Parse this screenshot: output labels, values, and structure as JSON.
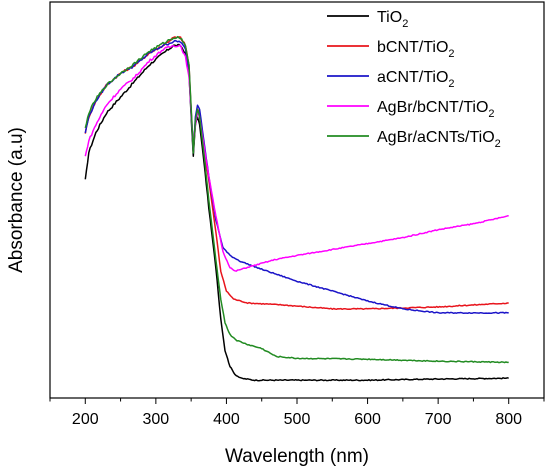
{
  "chart_data": {
    "type": "line",
    "title": "",
    "xlabel": "Wavelength (nm)",
    "ylabel": "Absorbance (a.u)",
    "xlim": [
      150,
      850
    ],
    "ylim": [
      0,
      1
    ],
    "x_ticks": [
      200,
      300,
      400,
      500,
      600,
      700,
      800
    ],
    "y_ticks_shown": false,
    "grid": false,
    "legend_position": "top-right",
    "series": [
      {
        "name": "TiO2",
        "legend_text": "TiO",
        "legend_sub": "2",
        "color": "#000000",
        "points": [
          [
            200,
            0.55
          ],
          [
            205,
            0.62
          ],
          [
            215,
            0.67
          ],
          [
            230,
            0.72
          ],
          [
            250,
            0.76
          ],
          [
            270,
            0.8
          ],
          [
            290,
            0.84
          ],
          [
            310,
            0.87
          ],
          [
            325,
            0.89
          ],
          [
            335,
            0.89
          ],
          [
            342,
            0.87
          ],
          [
            347,
            0.82
          ],
          [
            351,
            0.68
          ],
          [
            353,
            0.61
          ],
          [
            356,
            0.69
          ],
          [
            359,
            0.71
          ],
          [
            362,
            0.69
          ],
          [
            368,
            0.6
          ],
          [
            375,
            0.48
          ],
          [
            385,
            0.33
          ],
          [
            392,
            0.2
          ],
          [
            398,
            0.12
          ],
          [
            405,
            0.08
          ],
          [
            412,
            0.06
          ],
          [
            420,
            0.05
          ],
          [
            440,
            0.045
          ],
          [
            500,
            0.045
          ],
          [
            600,
            0.045
          ],
          [
            700,
            0.048
          ],
          [
            800,
            0.05
          ]
        ]
      },
      {
        "name": "bCNT/TiO2",
        "legend_text": "bCNT/TiO",
        "legend_sub": "2",
        "color": "#e8141c",
        "points": [
          [
            200,
            0.67
          ],
          [
            205,
            0.71
          ],
          [
            215,
            0.75
          ],
          [
            230,
            0.79
          ],
          [
            250,
            0.82
          ],
          [
            270,
            0.84
          ],
          [
            290,
            0.87
          ],
          [
            310,
            0.89
          ],
          [
            325,
            0.91
          ],
          [
            335,
            0.91
          ],
          [
            342,
            0.89
          ],
          [
            347,
            0.84
          ],
          [
            351,
            0.69
          ],
          [
            353,
            0.62
          ],
          [
            356,
            0.7
          ],
          [
            359,
            0.73
          ],
          [
            362,
            0.72
          ],
          [
            368,
            0.63
          ],
          [
            375,
            0.55
          ],
          [
            385,
            0.42
          ],
          [
            392,
            0.32
          ],
          [
            400,
            0.27
          ],
          [
            410,
            0.25
          ],
          [
            430,
            0.24
          ],
          [
            480,
            0.235
          ],
          [
            550,
            0.225
          ],
          [
            600,
            0.225
          ],
          [
            700,
            0.23
          ],
          [
            800,
            0.24
          ]
        ]
      },
      {
        "name": "aCNT/TiO2",
        "legend_text": "aCNT/TiO",
        "legend_sub": "2",
        "color": "#1b14c8",
        "points": [
          [
            200,
            0.67
          ],
          [
            205,
            0.71
          ],
          [
            215,
            0.75
          ],
          [
            230,
            0.79
          ],
          [
            250,
            0.82
          ],
          [
            270,
            0.84
          ],
          [
            290,
            0.87
          ],
          [
            310,
            0.89
          ],
          [
            325,
            0.9
          ],
          [
            335,
            0.9
          ],
          [
            342,
            0.88
          ],
          [
            347,
            0.83
          ],
          [
            351,
            0.69
          ],
          [
            353,
            0.62
          ],
          [
            356,
            0.71
          ],
          [
            359,
            0.74
          ],
          [
            362,
            0.73
          ],
          [
            368,
            0.65
          ],
          [
            375,
            0.56
          ],
          [
            385,
            0.45
          ],
          [
            395,
            0.38
          ],
          [
            405,
            0.36
          ],
          [
            420,
            0.345
          ],
          [
            450,
            0.325
          ],
          [
            500,
            0.295
          ],
          [
            550,
            0.27
          ],
          [
            600,
            0.245
          ],
          [
            650,
            0.225
          ],
          [
            700,
            0.215
          ],
          [
            750,
            0.215
          ],
          [
            800,
            0.215
          ]
        ]
      },
      {
        "name": "AgBr/bCNT/TiO2",
        "legend_text": "AgBr/bCNT/TiO",
        "legend_sub": "2",
        "color": "#ff00ff",
        "points": [
          [
            200,
            0.61
          ],
          [
            205,
            0.65
          ],
          [
            215,
            0.69
          ],
          [
            230,
            0.74
          ],
          [
            250,
            0.78
          ],
          [
            270,
            0.81
          ],
          [
            290,
            0.85
          ],
          [
            310,
            0.88
          ],
          [
            325,
            0.89
          ],
          [
            335,
            0.89
          ],
          [
            342,
            0.86
          ],
          [
            347,
            0.81
          ],
          [
            351,
            0.7
          ],
          [
            353,
            0.63
          ],
          [
            356,
            0.69
          ],
          [
            359,
            0.72
          ],
          [
            362,
            0.71
          ],
          [
            368,
            0.64
          ],
          [
            375,
            0.56
          ],
          [
            385,
            0.46
          ],
          [
            395,
            0.37
          ],
          [
            405,
            0.33
          ],
          [
            412,
            0.32
          ],
          [
            430,
            0.33
          ],
          [
            470,
            0.35
          ],
          [
            500,
            0.36
          ],
          [
            550,
            0.375
          ],
          [
            600,
            0.39
          ],
          [
            650,
            0.405
          ],
          [
            700,
            0.425
          ],
          [
            750,
            0.44
          ],
          [
            800,
            0.46
          ]
        ]
      },
      {
        "name": "AgBr/aCNTs/TiO2",
        "legend_text": "AgBr/aCNTs/TiO",
        "legend_sub": "2",
        "color": "#228b22",
        "points": [
          [
            200,
            0.68
          ],
          [
            205,
            0.72
          ],
          [
            215,
            0.755
          ],
          [
            230,
            0.79
          ],
          [
            250,
            0.82
          ],
          [
            270,
            0.845
          ],
          [
            290,
            0.875
          ],
          [
            310,
            0.895
          ],
          [
            325,
            0.91
          ],
          [
            335,
            0.91
          ],
          [
            342,
            0.89
          ],
          [
            347,
            0.84
          ],
          [
            351,
            0.7
          ],
          [
            353,
            0.62
          ],
          [
            356,
            0.7
          ],
          [
            359,
            0.73
          ],
          [
            362,
            0.71
          ],
          [
            368,
            0.62
          ],
          [
            375,
            0.5
          ],
          [
            385,
            0.35
          ],
          [
            392,
            0.25
          ],
          [
            398,
            0.19
          ],
          [
            405,
            0.16
          ],
          [
            415,
            0.145
          ],
          [
            430,
            0.135
          ],
          [
            450,
            0.125
          ],
          [
            470,
            0.105
          ],
          [
            500,
            0.1
          ],
          [
            600,
            0.098
          ],
          [
            700,
            0.093
          ],
          [
            800,
            0.09
          ]
        ]
      }
    ]
  }
}
